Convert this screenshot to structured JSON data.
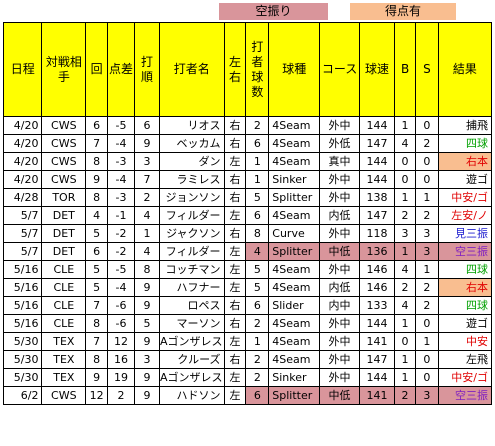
{
  "legend": {
    "items": [
      {
        "label": "空振り",
        "color": "#d9959b"
      },
      {
        "label": "得点有",
        "color": "#f9be90"
      }
    ]
  },
  "headers": [
    "日程",
    "対戦相手",
    "回",
    "点差",
    "打順",
    "打者名",
    "左右",
    "打者球数",
    "球種",
    "コース",
    "球速",
    "B",
    "S",
    "結果"
  ],
  "rows": [
    {
      "date": "4/20",
      "opp": "CWS",
      "inning": "6",
      "diff": "-5",
      "order": "6",
      "batter": "リオス",
      "lr": "右",
      "count": "2",
      "pitch": "4Seam",
      "course": "外中",
      "speed": "144",
      "b": "1",
      "s": "0",
      "result": "捕飛",
      "rc": "black",
      "kara": false,
      "score": false
    },
    {
      "date": "4/20",
      "opp": "CWS",
      "inning": "7",
      "diff": "-4",
      "order": "9",
      "batter": "ベッカム",
      "lr": "右",
      "count": "6",
      "pitch": "4Seam",
      "course": "外低",
      "speed": "147",
      "b": "4",
      "s": "2",
      "result": "四球",
      "rc": "green",
      "kara": false,
      "score": false
    },
    {
      "date": "4/20",
      "opp": "CWS",
      "inning": "8",
      "diff": "-3",
      "order": "3",
      "batter": "ダン",
      "lr": "左",
      "count": "1",
      "pitch": "4Seam",
      "course": "真中",
      "speed": "144",
      "b": "0",
      "s": "0",
      "result": "右本",
      "rc": "red",
      "kara": false,
      "score": true
    },
    {
      "date": "4/20",
      "opp": "CWS",
      "inning": "9",
      "diff": "-4",
      "order": "7",
      "batter": "ラミレス",
      "lr": "右",
      "count": "1",
      "pitch": "Sinker",
      "course": "外中",
      "speed": "144",
      "b": "0",
      "s": "0",
      "result": "遊ゴ",
      "rc": "black",
      "kara": false,
      "score": false
    },
    {
      "date": "4/28",
      "opp": "TOR",
      "inning": "8",
      "diff": "-3",
      "order": "2",
      "batter": "ジョンソン",
      "lr": "右",
      "count": "5",
      "pitch": "Splitter",
      "course": "外中",
      "speed": "138",
      "b": "1",
      "s": "1",
      "result": "中安/ゴ",
      "rc": "red",
      "kara": false,
      "score": false
    },
    {
      "date": "5/7",
      "opp": "DET",
      "inning": "4",
      "diff": "-1",
      "order": "4",
      "batter": "フィルダー",
      "lr": "左",
      "count": "6",
      "pitch": "4Seam",
      "course": "内低",
      "speed": "147",
      "b": "2",
      "s": "2",
      "result": "左安/ノ",
      "rc": "red",
      "kara": false,
      "score": false
    },
    {
      "date": "5/7",
      "opp": "DET",
      "inning": "5",
      "diff": "-2",
      "order": "1",
      "batter": "ジャクソン",
      "lr": "右",
      "count": "8",
      "pitch": "Curve",
      "course": "外中",
      "speed": "118",
      "b": "3",
      "s": "3",
      "result": "見三振",
      "rc": "blue",
      "kara": false,
      "score": false
    },
    {
      "date": "5/7",
      "opp": "DET",
      "inning": "6",
      "diff": "-2",
      "order": "4",
      "batter": "フィルダー",
      "lr": "左",
      "count": "4",
      "pitch": "Splitter",
      "course": "中低",
      "speed": "136",
      "b": "1",
      "s": "3",
      "result": "空三振",
      "rc": "purple",
      "kara": true,
      "score": false
    },
    {
      "date": "5/16",
      "opp": "CLE",
      "inning": "5",
      "diff": "-5",
      "order": "8",
      "batter": "コッチマン",
      "lr": "左",
      "count": "5",
      "pitch": "4Seam",
      "course": "外中",
      "speed": "146",
      "b": "4",
      "s": "1",
      "result": "四球",
      "rc": "green",
      "kara": false,
      "score": false
    },
    {
      "date": "5/16",
      "opp": "CLE",
      "inning": "5",
      "diff": "-4",
      "order": "9",
      "batter": "ハフナー",
      "lr": "左",
      "count": "5",
      "pitch": "4Seam",
      "course": "内低",
      "speed": "146",
      "b": "2",
      "s": "2",
      "result": "右本",
      "rc": "red",
      "kara": false,
      "score": true
    },
    {
      "date": "5/16",
      "opp": "CLE",
      "inning": "7",
      "diff": "-6",
      "order": "9",
      "batter": "ロペス",
      "lr": "右",
      "count": "6",
      "pitch": "Slider",
      "course": "内中",
      "speed": "133",
      "b": "4",
      "s": "2",
      "result": "四球",
      "rc": "green",
      "kara": false,
      "score": false
    },
    {
      "date": "5/16",
      "opp": "CLE",
      "inning": "8",
      "diff": "-6",
      "order": "5",
      "batter": "マーソン",
      "lr": "右",
      "count": "2",
      "pitch": "4Seam",
      "course": "外中",
      "speed": "144",
      "b": "1",
      "s": "0",
      "result": "遊ゴ",
      "rc": "black",
      "kara": false,
      "score": false
    },
    {
      "date": "5/30",
      "opp": "TEX",
      "inning": "7",
      "diff": "12",
      "order": "9",
      "batter": "Aゴンザレス",
      "lr": "左",
      "count": "1",
      "pitch": "4Seam",
      "course": "外中",
      "speed": "141",
      "b": "0",
      "s": "1",
      "result": "中安",
      "rc": "red",
      "kara": false,
      "score": false
    },
    {
      "date": "5/30",
      "opp": "TEX",
      "inning": "8",
      "diff": "16",
      "order": "3",
      "batter": "クルーズ",
      "lr": "右",
      "count": "2",
      "pitch": "4Seam",
      "course": "外中",
      "speed": "147",
      "b": "1",
      "s": "0",
      "result": "左飛",
      "rc": "black",
      "kara": false,
      "score": false
    },
    {
      "date": "5/30",
      "opp": "TEX",
      "inning": "9",
      "diff": "19",
      "order": "9",
      "batter": "Aゴンザレス",
      "lr": "左",
      "count": "2",
      "pitch": "Sinker",
      "course": "外中",
      "speed": "144",
      "b": "1",
      "s": "0",
      "result": "中安/ゴ",
      "rc": "red",
      "kara": false,
      "score": false
    },
    {
      "date": "6/2",
      "opp": "CWS",
      "inning": "12",
      "diff": "2",
      "order": "9",
      "batter": "ハドソン",
      "lr": "左",
      "count": "6",
      "pitch": "Splitter",
      "course": "中低",
      "speed": "141",
      "b": "2",
      "s": "3",
      "result": "空三振",
      "rc": "purple",
      "kara": true,
      "score": false
    }
  ]
}
